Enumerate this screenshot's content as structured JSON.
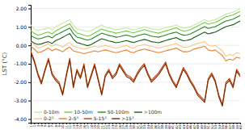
{
  "chart_data": {
    "type": "line",
    "ylabel": "LST (°C)",
    "categories": [
      "1",
      "2",
      "3",
      "4",
      "5",
      "6",
      "7",
      "8",
      "9",
      "10",
      "11",
      "12",
      "13",
      "14",
      "15",
      "16",
      "17",
      "18",
      "19",
      "20",
      "21",
      "22",
      "23",
      "24",
      "25",
      "26",
      "27",
      "28",
      "29",
      "30",
      "31",
      "32",
      "33",
      "34",
      "35",
      "36",
      "37",
      "38",
      "39",
      "40",
      "41",
      "42",
      "43",
      "44",
      "45",
      "46",
      "47",
      "48",
      "49",
      "50",
      "51",
      "52",
      "53",
      "54",
      "55",
      "56",
      "57",
      "58",
      "59",
      "60"
    ],
    "series": [
      {
        "name": "0-10m",
        "color": "#c8e8a8",
        "values": [
          1.1,
          0.9,
          0.8,
          0.85,
          0.9,
          0.95,
          0.85,
          1.0,
          1.1,
          1.2,
          1.3,
          1.4,
          1.1,
          0.9,
          0.85,
          0.8,
          0.75,
          0.8,
          0.9,
          1.0,
          1.1,
          1.0,
          0.95,
          0.9,
          0.85,
          0.88,
          0.92,
          0.95,
          0.88,
          0.84,
          0.9,
          0.95,
          1.0,
          0.95,
          0.9,
          0.88,
          0.85,
          0.9,
          0.95,
          1.0,
          1.05,
          1.1,
          1.0,
          0.95,
          0.95,
          1.0,
          1.1,
          1.2,
          1.3,
          1.4,
          1.3,
          1.35,
          1.4,
          1.5,
          1.6,
          1.7,
          1.75,
          1.8,
          1.9,
          2.0
        ]
      },
      {
        "name": "10-50m",
        "color": "#78c840",
        "values": [
          0.8,
          0.65,
          0.55,
          0.6,
          0.68,
          0.72,
          0.62,
          0.78,
          0.88,
          0.98,
          1.08,
          1.18,
          0.88,
          0.68,
          0.62,
          0.56,
          0.5,
          0.56,
          0.68,
          0.78,
          0.88,
          0.82,
          0.76,
          0.72,
          0.66,
          0.7,
          0.74,
          0.78,
          0.72,
          0.68,
          0.74,
          0.8,
          0.85,
          0.8,
          0.74,
          0.7,
          0.66,
          0.72,
          0.78,
          0.84,
          0.9,
          0.95,
          0.85,
          0.78,
          0.8,
          0.85,
          0.95,
          1.05,
          1.15,
          1.25,
          1.15,
          1.2,
          1.25,
          1.35,
          1.45,
          1.55,
          1.6,
          1.65,
          1.75,
          1.85
        ]
      },
      {
        "name": "50-100m",
        "color": "#228B22",
        "values": [
          0.55,
          0.42,
          0.35,
          0.38,
          0.45,
          0.5,
          0.4,
          0.56,
          0.64,
          0.74,
          0.84,
          0.94,
          0.64,
          0.45,
          0.4,
          0.34,
          0.28,
          0.34,
          0.45,
          0.56,
          0.66,
          0.6,
          0.54,
          0.5,
          0.44,
          0.47,
          0.52,
          0.56,
          0.5,
          0.45,
          0.52,
          0.57,
          0.62,
          0.57,
          0.5,
          0.47,
          0.44,
          0.5,
          0.56,
          0.62,
          0.67,
          0.72,
          0.62,
          0.55,
          0.57,
          0.62,
          0.72,
          0.82,
          0.92,
          1.02,
          0.92,
          0.97,
          1.02,
          1.12,
          1.22,
          1.32,
          1.37,
          1.42,
          1.52,
          1.62
        ]
      },
      {
        "name": ">100m",
        "color": "#1a5c1a",
        "values": [
          0.25,
          0.12,
          0.05,
          0.08,
          0.15,
          0.2,
          0.1,
          0.26,
          0.34,
          0.44,
          0.54,
          0.64,
          0.34,
          0.15,
          0.1,
          0.04,
          -0.02,
          0.04,
          0.15,
          0.26,
          0.36,
          0.3,
          0.24,
          0.2,
          0.14,
          0.17,
          0.22,
          0.26,
          0.2,
          0.15,
          0.22,
          0.27,
          0.32,
          0.27,
          0.2,
          0.17,
          0.14,
          0.2,
          0.26,
          0.32,
          0.37,
          0.42,
          0.32,
          0.25,
          0.27,
          0.32,
          0.42,
          0.52,
          0.62,
          0.72,
          0.62,
          0.67,
          0.72,
          0.82,
          0.92,
          1.02,
          1.07,
          1.12,
          1.22,
          1.32
        ]
      },
      {
        "name": "0-2°",
        "color": "#f5c88a",
        "values": [
          0.2,
          0.05,
          -0.15,
          -0.1,
          0.0,
          0.1,
          -0.05,
          0.05,
          0.0,
          -0.1,
          0.05,
          0.15,
          -0.05,
          -0.1,
          -0.15,
          -0.2,
          -0.15,
          -0.1,
          -0.05,
          -0.1,
          -0.05,
          0.0,
          -0.05,
          -0.1,
          -0.15,
          -0.1,
          -0.05,
          0.0,
          -0.1,
          -0.15,
          -0.05,
          0.0,
          0.05,
          0.0,
          -0.05,
          -0.1,
          -0.15,
          -0.1,
          -0.05,
          0.0,
          0.05,
          0.1,
          0.0,
          -0.1,
          -0.1,
          -0.05,
          0.05,
          0.1,
          0.15,
          0.2,
          0.0,
          -0.05,
          0.0,
          -0.15,
          -0.3,
          -0.6,
          -0.5,
          -0.55,
          -0.4,
          -0.45
        ]
      },
      {
        "name": "2-5°",
        "color": "#e88030",
        "values": [
          -0.05,
          -0.2,
          -0.4,
          -0.35,
          -0.25,
          -0.15,
          -0.3,
          -0.2,
          -0.25,
          -0.35,
          -0.2,
          -0.1,
          -0.3,
          -0.35,
          -0.4,
          -0.45,
          -0.4,
          -0.35,
          -0.3,
          -0.35,
          -0.3,
          -0.25,
          -0.3,
          -0.35,
          -0.4,
          -0.35,
          -0.3,
          -0.25,
          -0.35,
          -0.4,
          -0.3,
          -0.25,
          -0.2,
          -0.25,
          -0.3,
          -0.35,
          -0.4,
          -0.35,
          -0.3,
          -0.25,
          -0.2,
          -0.15,
          -0.25,
          -0.35,
          -0.35,
          -0.3,
          -0.2,
          -0.15,
          -0.1,
          -0.05,
          -0.25,
          -0.3,
          -0.25,
          -0.4,
          -0.55,
          -0.85,
          -0.75,
          -0.8,
          -0.65,
          -0.7
        ]
      },
      {
        "name": "5-15°",
        "color": "#c04000",
        "values": [
          -0.3,
          -0.8,
          -1.5,
          -2.0,
          -1.3,
          -0.7,
          -1.5,
          -1.8,
          -2.0,
          -2.6,
          -1.6,
          -0.7,
          -2.2,
          -1.3,
          -1.7,
          -1.0,
          -2.2,
          -1.6,
          -1.0,
          -1.8,
          -2.6,
          -1.6,
          -1.3,
          -1.7,
          -1.5,
          -1.0,
          -1.3,
          -1.6,
          -1.7,
          -1.9,
          -1.5,
          -1.2,
          -1.0,
          -1.5,
          -1.9,
          -1.7,
          -1.5,
          -1.2,
          -0.9,
          -1.5,
          -1.9,
          -2.2,
          -1.7,
          -1.2,
          -1.5,
          -1.9,
          -2.2,
          -2.6,
          -2.8,
          -3.0,
          -1.8,
          -1.5,
          -1.9,
          -2.7,
          -3.2,
          -2.0,
          -1.8,
          -2.2,
          -1.3,
          -1.6
        ]
      },
      {
        "name": ">15°",
        "color": "#7b2800",
        "values": [
          -0.4,
          -0.9,
          -1.6,
          -2.1,
          -1.4,
          -0.8,
          -1.6,
          -1.9,
          -2.1,
          -2.7,
          -1.7,
          -0.8,
          -2.3,
          -1.4,
          -1.8,
          -1.1,
          -2.3,
          -1.7,
          -1.1,
          -1.9,
          -2.7,
          -1.7,
          -1.4,
          -1.8,
          -1.6,
          -1.1,
          -1.4,
          -1.7,
          -1.8,
          -2.0,
          -1.6,
          -1.3,
          -1.1,
          -1.6,
          -2.0,
          -1.8,
          -1.6,
          -1.3,
          -1.0,
          -1.6,
          -2.0,
          -2.3,
          -1.8,
          -1.3,
          -1.6,
          -2.0,
          -2.3,
          -2.7,
          -2.9,
          -3.1,
          -1.9,
          -1.6,
          -2.0,
          -2.8,
          -3.3,
          -2.1,
          -1.9,
          -2.3,
          -1.4,
          -1.7
        ]
      }
    ],
    "ylim": [
      -4.2,
      2.2
    ],
    "yticks": [
      {
        "value": 2,
        "label": "2.00"
      },
      {
        "value": 1,
        "label": "1.00"
      },
      {
        "value": 0,
        "label": "0.00"
      },
      {
        "value": -1,
        "label": "-1.00"
      },
      {
        "value": -2,
        "label": "-2.00"
      },
      {
        "value": -3,
        "label": "-3.00"
      },
      {
        "value": -4,
        "label": "-4.00"
      }
    ],
    "grid": true,
    "legend": "lower left"
  }
}
